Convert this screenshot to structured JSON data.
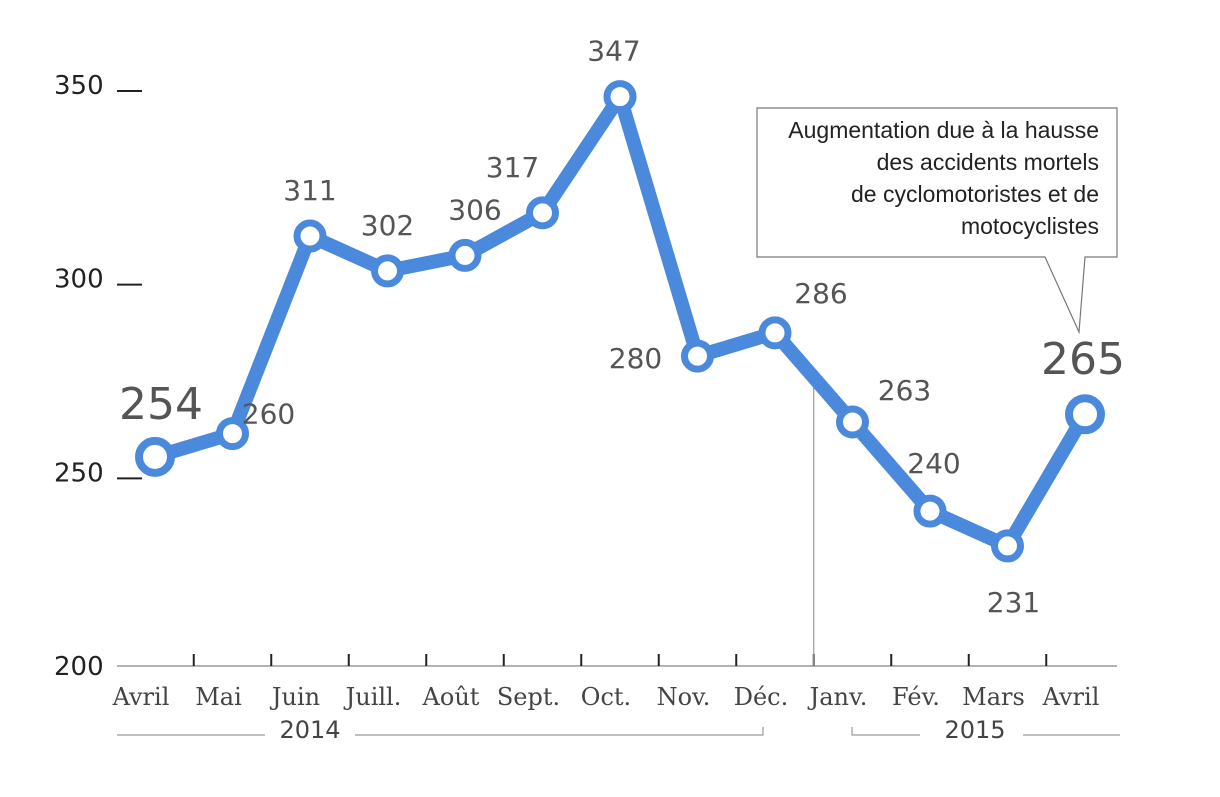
{
  "chart_data": {
    "type": "line",
    "categories": [
      "Avril",
      "Mai",
      "Juin",
      "Juill.",
      "Août",
      "Sept.",
      "Oct.",
      "Nov.",
      "Déc.",
      "Janv.",
      "Fév.",
      "Mars",
      "Avril"
    ],
    "values": [
      254,
      260,
      311,
      302,
      306,
      317,
      347,
      280,
      286,
      263,
      240,
      231,
      265
    ],
    "value_labels": [
      "254",
      "260",
      "311",
      "302",
      "306",
      "317",
      "347",
      "280",
      "286",
      "263",
      "240",
      "231",
      "265"
    ],
    "ylim": [
      200,
      350
    ],
    "yticks": [
      "200",
      "250",
      "300",
      "350"
    ],
    "years": [
      "2014",
      "2015"
    ],
    "annotation": [
      "Augmentation due à la hausse",
      "des accidents mortels",
      "de cyclomotoristes et de",
      "motocyclistes"
    ],
    "line_color": "#4a89dc",
    "grid": false
  }
}
